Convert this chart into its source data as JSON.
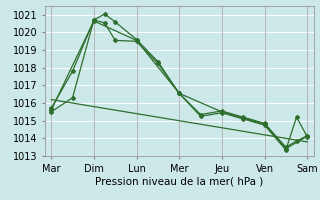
{
  "xlabel": "Pression niveau de la mer( hPa )",
  "bg_color": "#cce8e8",
  "grid_color": "#ffffff",
  "line_color": "#2d6e2d",
  "ylim": [
    1013,
    1021.5
  ],
  "yticks": [
    1013,
    1014,
    1015,
    1016,
    1017,
    1018,
    1019,
    1020,
    1021
  ],
  "day_labels": [
    "Mar",
    "Dim",
    "Lun",
    "Mer",
    "Jeu",
    "Ven",
    "Sam"
  ],
  "day_positions": [
    0,
    1,
    2,
    3,
    4,
    5,
    6
  ],
  "series_straight": {
    "x": [
      0.0,
      6.0
    ],
    "y": [
      1016.2,
      1013.8
    ]
  },
  "series_upper": {
    "x": [
      0.0,
      0.5,
      1.0,
      1.25,
      1.5,
      2.0,
      2.5,
      3.0,
      3.5,
      4.0,
      4.5,
      5.0,
      5.5,
      5.75,
      6.0
    ],
    "y": [
      1015.7,
      1017.8,
      1020.7,
      1021.05,
      1020.6,
      1019.6,
      1018.35,
      1016.55,
      1015.35,
      1015.55,
      1015.2,
      1014.85,
      1013.5,
      1013.85,
      1014.15
    ]
  },
  "series_lower": {
    "x": [
      0.0,
      0.5,
      1.0,
      1.25,
      1.5,
      2.0,
      2.5,
      3.0,
      3.5,
      4.0,
      4.5,
      5.0,
      5.5,
      5.75,
      6.0
    ],
    "y": [
      1015.5,
      1016.3,
      1020.7,
      1020.55,
      1019.55,
      1019.5,
      1018.25,
      1016.55,
      1015.25,
      1015.45,
      1015.1,
      1014.75,
      1013.35,
      1015.2,
      1014.1
    ]
  },
  "series_mid": {
    "x": [
      0.0,
      1.0,
      2.0,
      3.0,
      4.0,
      4.5,
      5.0,
      5.5,
      6.0
    ],
    "y": [
      1015.6,
      1020.65,
      1019.55,
      1016.55,
      1015.5,
      1015.15,
      1014.8,
      1013.42,
      1014.12
    ]
  }
}
